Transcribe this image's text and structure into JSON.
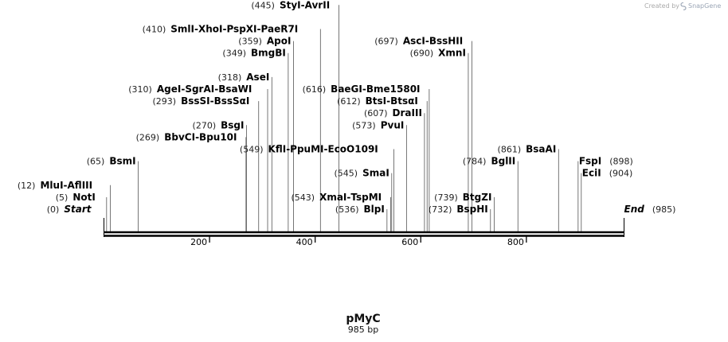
{
  "credit": {
    "prefix": "Created by",
    "brand": "SnapGene"
  },
  "plasmid": {
    "name": "pMyC",
    "length": 985,
    "length_label": "985 bp"
  },
  "axis": {
    "ticks": [
      200,
      400,
      600,
      800
    ]
  },
  "sites": [
    {
      "group": [
        {
          "name": "Start",
          "pos": 0
        }
      ],
      "label": "(0)",
      "row": 12,
      "side": "left",
      "italic": true
    },
    {
      "group": [
        {
          "name": "NotI",
          "pos": 5
        }
      ],
      "label": "(5)",
      "row": 11,
      "side": "left"
    },
    {
      "group": [
        {
          "name": "MluI",
          "pos": 12
        },
        {
          "name": "AflIII",
          "pos": 12
        }
      ],
      "label": "(12)",
      "row": 10,
      "side": "left"
    },
    {
      "group": [
        {
          "name": "BsmI",
          "pos": 65
        }
      ],
      "label": "(65)",
      "row": 8,
      "side": "left"
    },
    {
      "group": [
        {
          "name": "BbvCI",
          "pos": 269
        },
        {
          "name": "Bpu10I",
          "pos": 269
        }
      ],
      "label": "(269)",
      "row": 6,
      "side": "left"
    },
    {
      "group": [
        {
          "name": "BsgI",
          "pos": 270
        }
      ],
      "label": "(270)",
      "row": 5,
      "side": "left"
    },
    {
      "group": [
        {
          "name": "BssSI",
          "pos": 293
        },
        {
          "name": "BssSαI",
          "pos": 293
        }
      ],
      "label": "(293)",
      "row": 3,
      "side": "left"
    },
    {
      "group": [
        {
          "name": "AgeI",
          "pos": 310
        },
        {
          "name": "SgrAI",
          "pos": 310
        },
        {
          "name": "BsaWI",
          "pos": 310
        }
      ],
      "label": "(310)",
      "row": 2,
      "side": "left"
    },
    {
      "group": [
        {
          "name": "AseI",
          "pos": 318
        }
      ],
      "label": "(318)",
      "row": 1,
      "side": "left"
    },
    {
      "group": [
        {
          "name": "BmgBI",
          "pos": 349
        }
      ],
      "label": "(349)",
      "row": -1,
      "side": "left"
    },
    {
      "group": [
        {
          "name": "ApoI",
          "pos": 359
        }
      ],
      "label": "(359)",
      "row": -2,
      "side": "left"
    },
    {
      "group": [
        {
          "name": "SmlI",
          "pos": 410
        },
        {
          "name": "XhoI",
          "pos": 410
        },
        {
          "name": "PspXI",
          "pos": 410
        },
        {
          "name": "PaeR7I",
          "pos": 410
        }
      ],
      "label": "(410)",
      "row": -3,
      "side": "left"
    },
    {
      "group": [
        {
          "name": "StyI",
          "pos": 445
        },
        {
          "name": "AvrII",
          "pos": 445
        }
      ],
      "label": "(445)",
      "row": -5,
      "side": "left"
    },
    {
      "group": [
        {
          "name": "KflI",
          "pos": 549
        },
        {
          "name": "PpuMI",
          "pos": 549
        },
        {
          "name": "EcoO109I",
          "pos": 549
        }
      ],
      "label": "(549)",
      "row": 7,
      "side": "left"
    },
    {
      "group": [
        {
          "name": "XmaI",
          "pos": 543
        },
        {
          "name": "TspMI",
          "pos": 543
        }
      ],
      "label": "(543)",
      "row": 11,
      "side": "left"
    },
    {
      "group": [
        {
          "name": "SmaI",
          "pos": 545
        }
      ],
      "label": "(545)",
      "row": 9,
      "side": "left"
    },
    {
      "group": [
        {
          "name": "BlpI",
          "pos": 536
        }
      ],
      "label": "(536)",
      "row": 12,
      "side": "left"
    },
    {
      "group": [
        {
          "name": "BaeGI",
          "pos": 616
        },
        {
          "name": "Bme1580I",
          "pos": 616
        }
      ],
      "label": "(616)",
      "row": 2,
      "side": "left"
    },
    {
      "group": [
        {
          "name": "BtsI",
          "pos": 612
        },
        {
          "name": "BtsαI",
          "pos": 612
        }
      ],
      "label": "(612)",
      "row": 3,
      "side": "left"
    },
    {
      "group": [
        {
          "name": "DraIII",
          "pos": 607
        }
      ],
      "label": "(607)",
      "row": 4,
      "side": "left"
    },
    {
      "group": [
        {
          "name": "PvuI",
          "pos": 573
        }
      ],
      "label": "(573)",
      "row": 5,
      "side": "left"
    },
    {
      "group": [
        {
          "name": "AscI",
          "pos": 697
        },
        {
          "name": "BssHII",
          "pos": 697
        }
      ],
      "label": "(697)",
      "row": -2,
      "side": "left"
    },
    {
      "group": [
        {
          "name": "XmnI",
          "pos": 690
        }
      ],
      "label": "(690)",
      "row": -1,
      "side": "left"
    },
    {
      "group": [
        {
          "name": "BsaAI",
          "pos": 861
        }
      ],
      "label": "(861)",
      "row": 7,
      "side": "left"
    },
    {
      "group": [
        {
          "name": "BglII",
          "pos": 784
        }
      ],
      "label": "(784)",
      "row": 8,
      "side": "left"
    },
    {
      "group": [
        {
          "name": "BtgZI",
          "pos": 739
        }
      ],
      "label": "(739)",
      "row": 11,
      "side": "left"
    },
    {
      "group": [
        {
          "name": "BspHI",
          "pos": 732
        }
      ],
      "label": "(732)",
      "row": 12,
      "side": "left"
    },
    {
      "group": [
        {
          "name": "FspI",
          "pos": 898
        }
      ],
      "label": "(898)",
      "row": 8,
      "side": "right"
    },
    {
      "group": [
        {
          "name": "EciI",
          "pos": 904
        }
      ],
      "label": "(904)",
      "row": 9,
      "side": "right"
    },
    {
      "group": [
        {
          "name": "End",
          "pos": 985
        }
      ],
      "label": "(985)",
      "row": 12,
      "side": "right",
      "italic": true
    }
  ]
}
